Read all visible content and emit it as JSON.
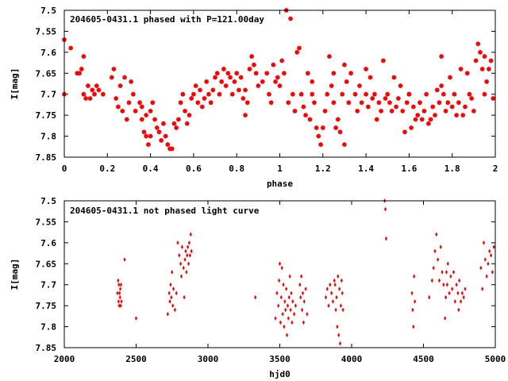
{
  "chart_data": [
    {
      "type": "scatter",
      "title": "204605-0431.1 phased with P=121.00day",
      "xlabel": "phase",
      "ylabel": "I[mag]",
      "xlim": [
        0,
        2
      ],
      "ylim": [
        7.5,
        7.85
      ],
      "y_inverted": true,
      "x_ticks": [
        "0",
        "0.2",
        "0.4",
        "0.6",
        "0.8",
        "1",
        "1.2",
        "1.4",
        "1.6",
        "1.8",
        "2"
      ],
      "y_ticks": [
        "7.5",
        "7.55",
        "7.6",
        "7.65",
        "7.7",
        "7.75",
        "7.8",
        "7.85"
      ],
      "marker": "filled-star",
      "color": "#ff0000",
      "points": [
        [
          0.0,
          7.57
        ],
        [
          0.0,
          7.7
        ],
        [
          0.03,
          7.59
        ],
        [
          0.06,
          7.65
        ],
        [
          0.07,
          7.65
        ],
        [
          0.08,
          7.64
        ],
        [
          0.09,
          7.61
        ],
        [
          0.09,
          7.7
        ],
        [
          0.1,
          7.71
        ],
        [
          0.11,
          7.68
        ],
        [
          0.12,
          7.71
        ],
        [
          0.13,
          7.69
        ],
        [
          0.14,
          7.7
        ],
        [
          0.15,
          7.68
        ],
        [
          0.16,
          7.69
        ],
        [
          0.18,
          7.7
        ],
        [
          0.22,
          7.66
        ],
        [
          0.23,
          7.64
        ],
        [
          0.24,
          7.71
        ],
        [
          0.25,
          7.73
        ],
        [
          0.26,
          7.68
        ],
        [
          0.27,
          7.74
        ],
        [
          0.28,
          7.66
        ],
        [
          0.29,
          7.76
        ],
        [
          0.3,
          7.72
        ],
        [
          0.31,
          7.67
        ],
        [
          0.32,
          7.7
        ],
        [
          0.33,
          7.74
        ],
        [
          0.35,
          7.72
        ],
        [
          0.36,
          7.73
        ],
        [
          0.36,
          7.76
        ],
        [
          0.37,
          7.79
        ],
        [
          0.38,
          7.8
        ],
        [
          0.38,
          7.75
        ],
        [
          0.39,
          7.82
        ],
        [
          0.4,
          7.8
        ],
        [
          0.4,
          7.74
        ],
        [
          0.41,
          7.72
        ],
        [
          0.42,
          7.76
        ],
        [
          0.43,
          7.78
        ],
        [
          0.44,
          7.79
        ],
        [
          0.45,
          7.81
        ],
        [
          0.46,
          7.77
        ],
        [
          0.47,
          7.8
        ],
        [
          0.48,
          7.82
        ],
        [
          0.49,
          7.83
        ],
        [
          0.5,
          7.83
        ],
        [
          0.51,
          7.77
        ],
        [
          0.52,
          7.78
        ],
        [
          0.53,
          7.76
        ],
        [
          0.54,
          7.72
        ],
        [
          0.55,
          7.7
        ],
        [
          0.56,
          7.74
        ],
        [
          0.57,
          7.77
        ],
        [
          0.58,
          7.75
        ],
        [
          0.59,
          7.71
        ],
        [
          0.6,
          7.7
        ],
        [
          0.61,
          7.68
        ],
        [
          0.62,
          7.72
        ],
        [
          0.63,
          7.69
        ],
        [
          0.64,
          7.73
        ],
        [
          0.65,
          7.71
        ],
        [
          0.66,
          7.67
        ],
        [
          0.67,
          7.7
        ],
        [
          0.68,
          7.72
        ],
        [
          0.69,
          7.69
        ],
        [
          0.7,
          7.66
        ],
        [
          0.71,
          7.65
        ],
        [
          0.72,
          7.7
        ],
        [
          0.73,
          7.67
        ],
        [
          0.74,
          7.64
        ],
        [
          0.75,
          7.68
        ],
        [
          0.76,
          7.65
        ],
        [
          0.77,
          7.66
        ],
        [
          0.78,
          7.7
        ],
        [
          0.79,
          7.67
        ],
        [
          0.8,
          7.65
        ],
        [
          0.81,
          7.69
        ],
        [
          0.82,
          7.66
        ],
        [
          0.83,
          7.71
        ],
        [
          0.84,
          7.75
        ],
        [
          0.84,
          7.69
        ],
        [
          0.85,
          7.72
        ],
        [
          0.86,
          7.64
        ],
        [
          0.87,
          7.61
        ],
        [
          0.88,
          7.63
        ],
        [
          0.89,
          7.65
        ],
        [
          0.9,
          7.68
        ],
        [
          0.92,
          7.67
        ],
        [
          0.94,
          7.65
        ],
        [
          0.95,
          7.7
        ],
        [
          0.96,
          7.72
        ],
        [
          0.98,
          7.67
        ],
        [
          0.99,
          7.66
        ],
        [
          1.0,
          7.68
        ],
        [
          1.01,
          7.62
        ],
        [
          1.02,
          7.65
        ],
        [
          1.03,
          7.5
        ],
        [
          1.04,
          7.72
        ],
        [
          1.05,
          7.52
        ],
        [
          1.06,
          7.7
        ],
        [
          1.07,
          7.74
        ],
        [
          1.08,
          7.6
        ],
        [
          1.09,
          7.59
        ],
        [
          1.1,
          7.7
        ],
        [
          1.11,
          7.73
        ],
        [
          1.12,
          7.75
        ],
        [
          1.13,
          7.65
        ],
        [
          1.14,
          7.76
        ],
        [
          1.15,
          7.7
        ],
        [
          1.16,
          7.72
        ],
        [
          1.17,
          7.78
        ],
        [
          1.18,
          7.8
        ],
        [
          1.19,
          7.82
        ],
        [
          1.2,
          7.78
        ],
        [
          1.21,
          7.74
        ],
        [
          1.22,
          7.7
        ],
        [
          1.23,
          7.61
        ],
        [
          1.24,
          7.68
        ],
        [
          1.25,
          7.72
        ],
        [
          1.26,
          7.78
        ],
        [
          1.27,
          7.76
        ],
        [
          1.28,
          7.79
        ],
        [
          1.29,
          7.7
        ],
        [
          1.3,
          7.82
        ],
        [
          1.31,
          7.67
        ],
        [
          1.32,
          7.72
        ],
        [
          1.33,
          7.65
        ],
        [
          1.35,
          7.7
        ],
        [
          1.36,
          7.74
        ],
        [
          1.37,
          7.68
        ],
        [
          1.38,
          7.72
        ],
        [
          1.4,
          7.7
        ],
        [
          1.41,
          7.73
        ],
        [
          1.42,
          7.66
        ],
        [
          1.43,
          7.71
        ],
        [
          1.44,
          7.7
        ],
        [
          1.45,
          7.76
        ],
        [
          1.46,
          7.72
        ],
        [
          1.47,
          7.74
        ],
        [
          1.48,
          7.62
        ],
        [
          1.49,
          7.71
        ],
        [
          1.5,
          7.7
        ],
        [
          1.51,
          7.72
        ],
        [
          1.52,
          7.74
        ],
        [
          1.53,
          7.66
        ],
        [
          1.54,
          7.73
        ],
        [
          1.55,
          7.71
        ],
        [
          1.56,
          7.68
        ],
        [
          1.57,
          7.74
        ],
        [
          1.58,
          7.79
        ],
        [
          1.59,
          7.72
        ],
        [
          1.6,
          7.7
        ],
        [
          1.61,
          7.78
        ],
        [
          1.62,
          7.73
        ],
        [
          1.63,
          7.76
        ],
        [
          1.64,
          7.75
        ],
        [
          1.65,
          7.72
        ],
        [
          1.66,
          7.76
        ],
        [
          1.67,
          7.74
        ],
        [
          1.68,
          7.7
        ],
        [
          1.69,
          7.77
        ],
        [
          1.7,
          7.76
        ],
        [
          1.71,
          7.73
        ],
        [
          1.72,
          7.75
        ],
        [
          1.73,
          7.69
        ],
        [
          1.74,
          7.72
        ],
        [
          1.75,
          7.68
        ],
        [
          1.76,
          7.7
        ],
        [
          1.77,
          7.74
        ],
        [
          1.78,
          7.72
        ],
        [
          1.79,
          7.66
        ],
        [
          1.8,
          7.73
        ],
        [
          1.81,
          7.7
        ],
        [
          1.82,
          7.75
        ],
        [
          1.83,
          7.72
        ],
        [
          1.84,
          7.64
        ],
        [
          1.85,
          7.75
        ],
        [
          1.86,
          7.73
        ],
        [
          1.87,
          7.65
        ],
        [
          1.88,
          7.7
        ],
        [
          1.89,
          7.71
        ],
        [
          1.9,
          7.74
        ],
        [
          1.91,
          7.62
        ],
        [
          1.92,
          7.58
        ],
        [
          1.93,
          7.6
        ],
        [
          1.94,
          7.64
        ],
        [
          1.95,
          7.61
        ],
        [
          1.96,
          7.67
        ],
        [
          1.97,
          7.64
        ],
        [
          1.98,
          7.62
        ],
        [
          1.99,
          7.71
        ],
        [
          1.3,
          7.63
        ],
        [
          1.15,
          7.67
        ],
        [
          1.25,
          7.65
        ],
        [
          0.97,
          7.63
        ],
        [
          1.4,
          7.64
        ],
        [
          1.6,
          7.7
        ],
        [
          1.75,
          7.61
        ],
        [
          1.95,
          7.7
        ]
      ]
    },
    {
      "type": "scatter",
      "title": "204605-0431.1 not phased light curve",
      "xlabel": "hjd0",
      "ylabel": "I[mag]",
      "xlim": [
        2000,
        5000
      ],
      "ylim": [
        7.5,
        7.85
      ],
      "y_inverted": true,
      "x_ticks": [
        "2000",
        "2500",
        "3000",
        "3500",
        "4000",
        "4500",
        "5000"
      ],
      "y_ticks": [
        "7.5",
        "7.55",
        "7.6",
        "7.65",
        "7.7",
        "7.75",
        "7.8",
        "7.85"
      ],
      "marker": "filled-diamond",
      "color": "#ff0000",
      "points": [
        [
          2370,
          7.72
        ],
        [
          2375,
          7.69
        ],
        [
          2378,
          7.74
        ],
        [
          2380,
          7.7
        ],
        [
          2382,
          7.75
        ],
        [
          2385,
          7.72
        ],
        [
          2388,
          7.73
        ],
        [
          2390,
          7.71
        ],
        [
          2393,
          7.75
        ],
        [
          2395,
          7.7
        ],
        [
          2398,
          7.74
        ],
        [
          2420,
          7.64
        ],
        [
          2500,
          7.78
        ],
        [
          2720,
          7.77
        ],
        [
          2730,
          7.72
        ],
        [
          2735,
          7.74
        ],
        [
          2740,
          7.7
        ],
        [
          2745,
          7.73
        ],
        [
          2750,
          7.67
        ],
        [
          2755,
          7.75
        ],
        [
          2760,
          7.71
        ],
        [
          2770,
          7.76
        ],
        [
          2780,
          7.72
        ],
        [
          2790,
          7.6
        ],
        [
          2800,
          7.63
        ],
        [
          2810,
          7.65
        ],
        [
          2815,
          7.68
        ],
        [
          2820,
          7.61
        ],
        [
          2830,
          7.66
        ],
        [
          2835,
          7.73
        ],
        [
          2840,
          7.64
        ],
        [
          2845,
          7.62
        ],
        [
          2850,
          7.67
        ],
        [
          2855,
          7.63
        ],
        [
          2860,
          7.61
        ],
        [
          2865,
          7.65
        ],
        [
          2870,
          7.6
        ],
        [
          2875,
          7.63
        ],
        [
          2880,
          7.58
        ],
        [
          2885,
          7.62
        ],
        [
          3330,
          7.73
        ],
        [
          3470,
          7.78
        ],
        [
          3480,
          7.72
        ],
        [
          3490,
          7.75
        ],
        [
          3495,
          7.69
        ],
        [
          3500,
          7.65
        ],
        [
          3505,
          7.79
        ],
        [
          3510,
          7.73
        ],
        [
          3515,
          7.66
        ],
        [
          3520,
          7.77
        ],
        [
          3525,
          7.7
        ],
        [
          3530,
          7.8
        ],
        [
          3535,
          7.74
        ],
        [
          3540,
          7.76
        ],
        [
          3545,
          7.71
        ],
        [
          3550,
          7.82
        ],
        [
          3555,
          7.75
        ],
        [
          3560,
          7.78
        ],
        [
          3565,
          7.73
        ],
        [
          3570,
          7.68
        ],
        [
          3575,
          7.76
        ],
        [
          3580,
          7.72
        ],
        [
          3585,
          7.79
        ],
        [
          3590,
          7.74
        ],
        [
          3600,
          7.77
        ],
        [
          3610,
          7.75
        ],
        [
          3640,
          7.7
        ],
        [
          3645,
          7.73
        ],
        [
          3650,
          7.68
        ],
        [
          3655,
          7.76
        ],
        [
          3660,
          7.72
        ],
        [
          3665,
          7.79
        ],
        [
          3670,
          7.74
        ],
        [
          3680,
          7.71
        ],
        [
          3690,
          7.77
        ],
        [
          3820,
          7.73
        ],
        [
          3830,
          7.71
        ],
        [
          3840,
          7.75
        ],
        [
          3850,
          7.7
        ],
        [
          3860,
          7.72
        ],
        [
          3870,
          7.74
        ],
        [
          3880,
          7.69
        ],
        [
          3885,
          7.7
        ],
        [
          3890,
          7.76
        ],
        [
          3895,
          7.73
        ],
        [
          3900,
          7.8
        ],
        [
          3905,
          7.68
        ],
        [
          3910,
          7.82
        ],
        [
          3915,
          7.71
        ],
        [
          3920,
          7.84
        ],
        [
          3925,
          7.75
        ],
        [
          3930,
          7.69
        ],
        [
          3935,
          7.72
        ],
        [
          3940,
          7.76
        ],
        [
          4230,
          7.5
        ],
        [
          4235,
          7.52
        ],
        [
          4240,
          7.59
        ],
        [
          4420,
          7.72
        ],
        [
          4425,
          7.76
        ],
        [
          4430,
          7.8
        ],
        [
          4435,
          7.68
        ],
        [
          4440,
          7.74
        ],
        [
          4540,
          7.73
        ],
        [
          4560,
          7.69
        ],
        [
          4570,
          7.66
        ],
        [
          4580,
          7.62
        ],
        [
          4590,
          7.58
        ],
        [
          4600,
          7.64
        ],
        [
          4610,
          7.69
        ],
        [
          4620,
          7.61
        ],
        [
          4630,
          7.67
        ],
        [
          4640,
          7.7
        ],
        [
          4650,
          7.78
        ],
        [
          4655,
          7.73
        ],
        [
          4660,
          7.67
        ],
        [
          4665,
          7.7
        ],
        [
          4670,
          7.65
        ],
        [
          4680,
          7.72
        ],
        [
          4690,
          7.68
        ],
        [
          4700,
          7.71
        ],
        [
          4710,
          7.67
        ],
        [
          4720,
          7.74
        ],
        [
          4730,
          7.7
        ],
        [
          4740,
          7.72
        ],
        [
          4745,
          7.76
        ],
        [
          4750,
          7.69
        ],
        [
          4760,
          7.74
        ],
        [
          4770,
          7.72
        ],
        [
          4780,
          7.73
        ],
        [
          4790,
          7.71
        ],
        [
          4900,
          7.66
        ],
        [
          4910,
          7.71
        ],
        [
          4920,
          7.6
        ],
        [
          4930,
          7.64
        ],
        [
          4940,
          7.68
        ],
        [
          4950,
          7.65
        ],
        [
          4960,
          7.62
        ],
        [
          4970,
          7.63
        ],
        [
          4980,
          7.67
        ],
        [
          4990,
          7.61
        ]
      ]
    }
  ]
}
